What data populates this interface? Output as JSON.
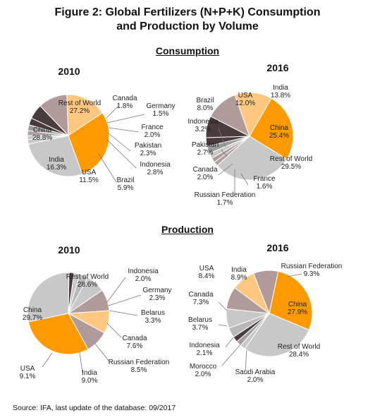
{
  "title_line1": "Figure 2: Global Fertilizers (N+P+K) Consumption",
  "title_line2": "and Production by Volume",
  "sections": {
    "consumption": "Consumption",
    "production": "Production"
  },
  "source": "Source: IFA, last update of the database: 09/2017",
  "colors": {
    "Rest of World": "#c8c8c8",
    "China": "#ff9900",
    "India": "#ffc780",
    "USA": "#b09a9a",
    "Brazil": "#4a3c3c",
    "Indonesia": "#4a3c3c",
    "Russian Federation": "#b09a9a",
    "Canada": "#c8c8c8",
    "France": "#b0a0a0",
    "Germany": "#c8c8c8",
    "Pakistan": "#9a9a9a",
    "Belarus": "#b8b8b8",
    "Morocco": "#a0a0a0",
    "Saudi Arabia": "#c8c8c8"
  },
  "chart_data": [
    {
      "type": "pie",
      "section": "Consumption",
      "title": "2010",
      "slices": [
        {
          "label": "Rest of World",
          "value": 27.2,
          "text": "27.2%"
        },
        {
          "label": "Canada",
          "value": 1.8,
          "text": "1.8%"
        },
        {
          "label": "Germany",
          "value": 1.5,
          "text": "1.5%"
        },
        {
          "label": "France",
          "value": 2.0,
          "text": "2.0%"
        },
        {
          "label": "Pakistan",
          "value": 2.3,
          "text": "2.3%"
        },
        {
          "label": "Indonesia",
          "value": 2.8,
          "text": "2.8%"
        },
        {
          "label": "Brazil",
          "value": 5.9,
          "text": "5.9%"
        },
        {
          "label": "USA",
          "value": 11.5,
          "text": "11.5%"
        },
        {
          "label": "India",
          "value": 16.3,
          "text": "16.3%"
        },
        {
          "label": "China",
          "value": 28.8,
          "text": "28.8%"
        }
      ]
    },
    {
      "type": "pie",
      "section": "Consumption",
      "title": "2016",
      "slices": [
        {
          "label": "China",
          "value": 25.4,
          "text": "25.4%"
        },
        {
          "label": "Rest of World",
          "value": 29.5,
          "text": "29.5%"
        },
        {
          "label": "France",
          "value": 1.6,
          "text": "1.6%"
        },
        {
          "label": "Russian Federation",
          "value": 1.7,
          "text": "1.7%"
        },
        {
          "label": "Canada",
          "value": 2.0,
          "text": "2.0%"
        },
        {
          "label": "Pakistan",
          "value": 2.7,
          "text": "2.7%"
        },
        {
          "label": "Indonesia",
          "value": 3.2,
          "text": "3.2%"
        },
        {
          "label": "Brazil",
          "value": 8.0,
          "text": "8.0%"
        },
        {
          "label": "USA",
          "value": 12.0,
          "text": "12.0%"
        },
        {
          "label": "India",
          "value": 13.8,
          "text": "13.8%"
        }
      ]
    },
    {
      "type": "pie",
      "section": "Production",
      "title": "2010",
      "slices": [
        {
          "label": "Rest of World",
          "value": 28.6,
          "text": "28.6%"
        },
        {
          "label": "Indonesia",
          "value": 2.0,
          "text": "2.0%"
        },
        {
          "label": "Germany",
          "value": 2.3,
          "text": "2.3%"
        },
        {
          "label": "Belarus",
          "value": 3.3,
          "text": "3.3%"
        },
        {
          "label": "Canada",
          "value": 7.6,
          "text": "7.6%"
        },
        {
          "label": "Russian Federation",
          "value": 8.5,
          "text": "8.5%"
        },
        {
          "label": "India",
          "value": 9.0,
          "text": "9.0%"
        },
        {
          "label": "USA",
          "value": 9.1,
          "text": "9.1%"
        },
        {
          "label": "China",
          "value": 29.7,
          "text": "29.7%"
        }
      ]
    },
    {
      "type": "pie",
      "section": "Production",
      "title": "2016",
      "slices": [
        {
          "label": "China",
          "value": 27.9,
          "text": "27.9%"
        },
        {
          "label": "Rest of World",
          "value": 28.4,
          "text": "28.4%"
        },
        {
          "label": "Saudi Arabia",
          "value": 2.0,
          "text": "2.0%"
        },
        {
          "label": "Morocco",
          "value": 2.0,
          "text": "2.0%"
        },
        {
          "label": "Indonesia",
          "value": 2.1,
          "text": "2.1%"
        },
        {
          "label": "Belarus",
          "value": 3.7,
          "text": "3.7%"
        },
        {
          "label": "Canada",
          "value": 7.3,
          "text": "7.3%"
        },
        {
          "label": "USA",
          "value": 8.4,
          "text": "8.4%"
        },
        {
          "label": "India",
          "value": 8.9,
          "text": "8.9%"
        },
        {
          "label": "Russian Federation",
          "value": 9.3,
          "text": "9.3%"
        }
      ]
    }
  ]
}
